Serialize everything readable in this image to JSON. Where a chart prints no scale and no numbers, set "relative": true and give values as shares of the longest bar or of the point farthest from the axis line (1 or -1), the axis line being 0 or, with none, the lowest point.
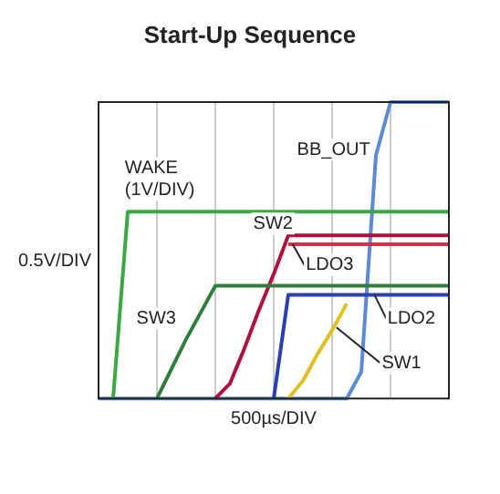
{
  "chart_data": {
    "type": "line",
    "title": "Start-Up Sequence",
    "xlabel": "500µs/DIV",
    "ylabel": "0.5V/DIV",
    "relative": true,
    "categories": [
      null,
      null,
      null,
      null,
      null,
      null,
      null,
      null,
      null,
      null,
      null,
      null,
      null,
      null,
      null,
      null,
      null,
      null,
      null,
      null,
      null,
      null,
      null,
      null,
      null
    ],
    "grid": "x",
    "legend": false,
    "marker": "none",
    "line_style": "solid",
    "series": [
      {
        "name": "WAKE (1V/DIV)",
        "color": "#3aa843",
        "values": [
          null,
          0,
          0.63,
          0.63,
          0.63,
          0.63,
          0.63,
          0.63,
          0.63,
          0.63,
          0.63,
          0.63,
          0.63,
          0.63,
          0.63,
          0.63,
          0.63,
          0.63,
          0.63,
          0.63,
          0.63,
          0.63,
          0.63,
          0.63,
          0.63
        ]
      },
      {
        "name": "SW3",
        "color": "#2e7d3a",
        "values": [
          null,
          null,
          null,
          null,
          0,
          0.1,
          0.2,
          0.29,
          0.38,
          0.38,
          0.38,
          0.38,
          0.38,
          0.38,
          0.38,
          0.38,
          0.38,
          0.38,
          0.38,
          0.38,
          0.38,
          0.38,
          0.38,
          0.38,
          0.38
        ]
      },
      {
        "name": "SW2",
        "color": "#b0103a",
        "values": [
          null,
          null,
          null,
          null,
          null,
          null,
          null,
          null,
          0,
          0.05,
          0.17,
          0.3,
          0.42,
          0.55,
          0.55,
          0.55,
          0.55,
          0.55,
          0.55,
          0.55,
          0.55,
          0.55,
          0.55,
          0.55,
          0.55
        ]
      },
      {
        "name": "LDO3",
        "color": "#d2304f",
        "values": [
          null,
          null,
          null,
          null,
          null,
          null,
          null,
          null,
          null,
          null,
          null,
          null,
          null,
          0.52,
          0.52,
          0.52,
          0.52,
          0.52,
          0.52,
          0.52,
          0.52,
          0.52,
          0.52,
          0.52,
          0.52
        ]
      },
      {
        "name": "LDO2",
        "color": "#2a3fb0",
        "values": [
          null,
          null,
          null,
          null,
          null,
          null,
          null,
          null,
          null,
          null,
          null,
          null,
          0,
          0.35,
          0.35,
          0.35,
          0.35,
          0.35,
          0.35,
          0.35,
          0.35,
          0.35,
          0.35,
          0.35,
          0.35
        ]
      },
      {
        "name": "SW1",
        "color": "#e0c020",
        "values": [
          null,
          null,
          null,
          null,
          null,
          null,
          null,
          null,
          null,
          null,
          null,
          null,
          null,
          0,
          0.06,
          0.15,
          0.23,
          0.32,
          null,
          null,
          null,
          null,
          null,
          null,
          null
        ]
      },
      {
        "name": "BB_OUT",
        "color": "#5a8ad8",
        "values": [
          0,
          null,
          0,
          0,
          null,
          0,
          0,
          0,
          null,
          0,
          0,
          0,
          null,
          null,
          0,
          0,
          0,
          0,
          0.09,
          0.82,
          1,
          1,
          1,
          1,
          1
        ]
      }
    ]
  }
}
